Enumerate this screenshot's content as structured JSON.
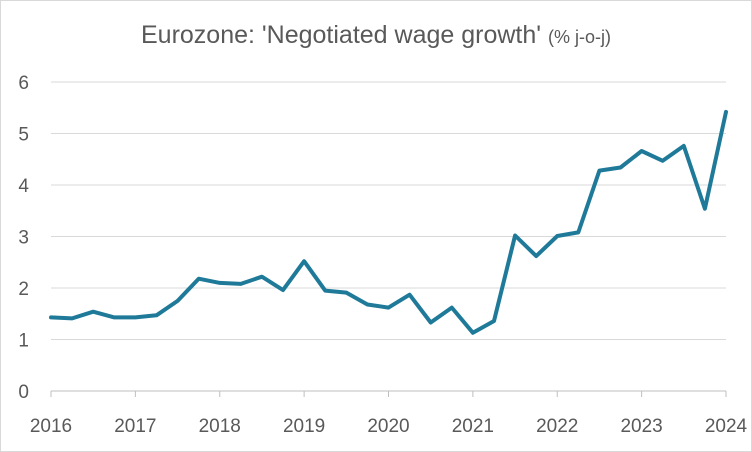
{
  "chart_data": {
    "type": "line",
    "title": "Eurozone: 'Negotiated wage growth'",
    "subtitle": "(% j-o-j)",
    "xlabel": "",
    "ylabel": "",
    "x_ticks": [
      "2016",
      "2017",
      "2018",
      "2019",
      "2020",
      "2021",
      "2022",
      "2023",
      "2024"
    ],
    "xlim": [
      2016,
      2024
    ],
    "ylim": [
      0,
      6
    ],
    "y_ticks": [
      "0",
      "1",
      "2",
      "3",
      "4",
      "5",
      "6"
    ],
    "grid": true,
    "line_color": "#1f7a99",
    "series": [
      {
        "name": "",
        "x": [
          2016.0,
          2016.25,
          2016.5,
          2016.75,
          2017.0,
          2017.25,
          2017.5,
          2017.75,
          2018.0,
          2018.25,
          2018.5,
          2018.75,
          2019.0,
          2019.25,
          2019.5,
          2019.75,
          2020.0,
          2020.25,
          2020.5,
          2020.75,
          2021.0,
          2021.25,
          2021.5,
          2021.75,
          2022.0,
          2022.25,
          2022.5,
          2022.75,
          2023.0,
          2023.25,
          2023.5,
          2023.75,
          2024.0
        ],
        "values": [
          1.43,
          1.41,
          1.54,
          1.43,
          1.43,
          1.47,
          1.75,
          2.18,
          2.1,
          2.08,
          2.22,
          1.96,
          2.52,
          1.95,
          1.91,
          1.68,
          1.62,
          1.87,
          1.33,
          1.62,
          1.13,
          1.36,
          3.02,
          2.62,
          3.01,
          3.08,
          4.28,
          4.34,
          4.66,
          4.47,
          4.76,
          3.54,
          5.42
        ]
      }
    ]
  }
}
